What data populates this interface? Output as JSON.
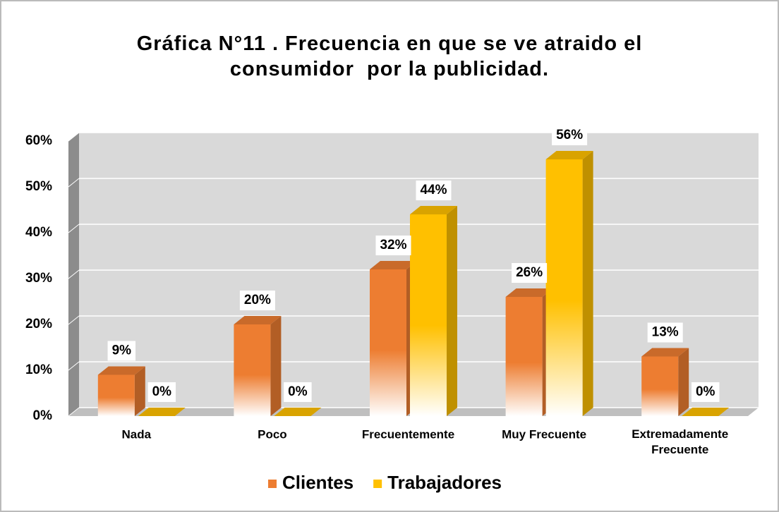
{
  "chart_data": {
    "type": "bar3d",
    "title": "Gráfica N°11 . Frecuencia en que se ve atraido el consumidor  por la publicidad.",
    "categories": [
      "Nada",
      "Poco",
      "Frecuentemente",
      "Muy Frecuente",
      "Extremadamente Frecuente"
    ],
    "series": [
      {
        "name": "Clientes",
        "color": "#ed7d31",
        "values": [
          9,
          20,
          32,
          26,
          13
        ],
        "value_labels": [
          "9%",
          "20%",
          "32%",
          "26%",
          "13%"
        ]
      },
      {
        "name": "Trabajadores",
        "color": "#ffc000",
        "values": [
          0,
          0,
          44,
          56,
          0
        ],
        "value_labels": [
          "0%",
          "0%",
          "44%",
          "56%",
          "0%"
        ]
      }
    ],
    "ylim": [
      0,
      60
    ],
    "yticks": [
      {
        "value": 0,
        "label": "0%"
      },
      {
        "value": 10,
        "label": "10%"
      },
      {
        "value": 20,
        "label": "20%"
      },
      {
        "value": 30,
        "label": "30%"
      },
      {
        "value": 40,
        "label": "40%"
      },
      {
        "value": 50,
        "label": "50%"
      },
      {
        "value": 60,
        "label": "60%"
      }
    ],
    "grid": true,
    "legend": "bottom"
  }
}
